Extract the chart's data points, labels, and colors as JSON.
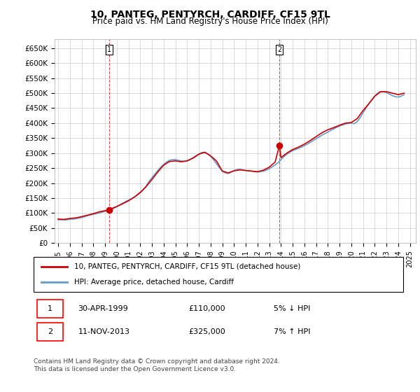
{
  "title": "10, PANTEG, PENTYRCH, CARDIFF, CF15 9TL",
  "subtitle": "Price paid vs. HM Land Registry's House Price Index (HPI)",
  "ylabel_ticks": [
    "£0",
    "£50K",
    "£100K",
    "£150K",
    "£200K",
    "£250K",
    "£300K",
    "£350K",
    "£400K",
    "£450K",
    "£500K",
    "£550K",
    "£600K",
    "£650K"
  ],
  "ytick_vals": [
    0,
    50000,
    100000,
    150000,
    200000,
    250000,
    300000,
    350000,
    400000,
    450000,
    500000,
    550000,
    600000,
    650000
  ],
  "ylim": [
    0,
    680000
  ],
  "xlim_start": 1995.0,
  "xlim_end": 2025.5,
  "sale1_year": 1999.33,
  "sale1_price": 110000,
  "sale1_label": "1",
  "sale2_year": 2013.87,
  "sale2_price": 325000,
  "sale2_label": "2",
  "property_line_color": "#cc0000",
  "hpi_line_color": "#6699cc",
  "vline_color": "#cc0000",
  "legend_label1": "10, PANTEG, PENTYRCH, CARDIFF, CF15 9TL (detached house)",
  "legend_label2": "HPI: Average price, detached house, Cardiff",
  "annotation1": "1    30-APR-1999         £110,000        5% ↓ HPI",
  "annotation2": "2    11-NOV-2013         £325,000        7% ↑ HPI",
  "footer": "Contains HM Land Registry data © Crown copyright and database right 2024.\nThis data is licensed under the Open Government Licence v3.0.",
  "background_color": "#ffffff",
  "grid_color": "#cccccc",
  "hpi_data": {
    "years": [
      1995.0,
      1995.25,
      1995.5,
      1995.75,
      1996.0,
      1996.25,
      1996.5,
      1996.75,
      1997.0,
      1997.25,
      1997.5,
      1997.75,
      1998.0,
      1998.25,
      1998.5,
      1998.75,
      1999.0,
      1999.25,
      1999.5,
      1999.75,
      2000.0,
      2000.25,
      2000.5,
      2000.75,
      2001.0,
      2001.25,
      2001.5,
      2001.75,
      2002.0,
      2002.25,
      2002.5,
      2002.75,
      2003.0,
      2003.25,
      2003.5,
      2003.75,
      2004.0,
      2004.25,
      2004.5,
      2004.75,
      2005.0,
      2005.25,
      2005.5,
      2005.75,
      2006.0,
      2006.25,
      2006.5,
      2006.75,
      2007.0,
      2007.25,
      2007.5,
      2007.75,
      2008.0,
      2008.25,
      2008.5,
      2008.75,
      2009.0,
      2009.25,
      2009.5,
      2009.75,
      2010.0,
      2010.25,
      2010.5,
      2010.75,
      2011.0,
      2011.25,
      2011.5,
      2011.75,
      2012.0,
      2012.25,
      2012.5,
      2012.75,
      2013.0,
      2013.25,
      2013.5,
      2013.75,
      2014.0,
      2014.25,
      2014.5,
      2014.75,
      2015.0,
      2015.25,
      2015.5,
      2015.75,
      2016.0,
      2016.25,
      2016.5,
      2016.75,
      2017.0,
      2017.25,
      2017.5,
      2017.75,
      2018.0,
      2018.25,
      2018.5,
      2018.75,
      2019.0,
      2019.25,
      2019.5,
      2019.75,
      2020.0,
      2020.25,
      2020.5,
      2020.75,
      2021.0,
      2021.25,
      2021.5,
      2021.75,
      2022.0,
      2022.25,
      2022.5,
      2022.75,
      2023.0,
      2023.25,
      2023.5,
      2023.75,
      2024.0,
      2024.25,
      2024.5
    ],
    "values": [
      78000,
      77500,
      77000,
      77500,
      79000,
      80000,
      81000,
      83000,
      85000,
      88000,
      91000,
      93500,
      96000,
      98000,
      100000,
      103000,
      106000,
      109000,
      112000,
      116000,
      121000,
      127000,
      133000,
      138000,
      143000,
      148000,
      154000,
      160000,
      167000,
      177000,
      190000,
      205000,
      218000,
      230000,
      242000,
      253000,
      262000,
      270000,
      276000,
      278000,
      278000,
      276000,
      274000,
      273000,
      275000,
      279000,
      285000,
      291000,
      297000,
      302000,
      302000,
      298000,
      290000,
      278000,
      265000,
      252000,
      240000,
      234000,
      232000,
      236000,
      242000,
      245000,
      246000,
      244000,
      242000,
      241000,
      240000,
      238000,
      237000,
      238000,
      240000,
      243000,
      248000,
      254000,
      260000,
      268000,
      278000,
      288000,
      296000,
      303000,
      308000,
      312000,
      316000,
      320000,
      325000,
      330000,
      336000,
      342000,
      348000,
      354000,
      360000,
      365000,
      370000,
      376000,
      381000,
      386000,
      390000,
      394000,
      397000,
      399000,
      400000,
      398000,
      405000,
      418000,
      434000,
      450000,
      465000,
      478000,
      490000,
      500000,
      505000,
      505000,
      502000,
      497000,
      492000,
      488000,
      487000,
      490000,
      495000
    ]
  },
  "property_data": {
    "years": [
      1995.0,
      1995.5,
      1996.0,
      1996.5,
      1997.0,
      1997.5,
      1998.0,
      1998.5,
      1999.0,
      1999.33,
      1999.5,
      2000.0,
      2000.5,
      2001.0,
      2001.5,
      2002.0,
      2002.5,
      2003.0,
      2003.5,
      2004.0,
      2004.5,
      2005.0,
      2005.5,
      2006.0,
      2006.5,
      2007.0,
      2007.5,
      2008.0,
      2008.5,
      2009.0,
      2009.5,
      2010.0,
      2010.5,
      2011.0,
      2011.5,
      2012.0,
      2012.5,
      2013.0,
      2013.5,
      2013.87,
      2014.0,
      2014.5,
      2015.0,
      2015.5,
      2016.0,
      2016.5,
      2017.0,
      2017.5,
      2018.0,
      2018.5,
      2019.0,
      2019.5,
      2020.0,
      2020.5,
      2021.0,
      2021.5,
      2022.0,
      2022.5,
      2023.0,
      2023.5,
      2024.0,
      2024.5
    ],
    "values": [
      80000,
      79000,
      82000,
      84000,
      88000,
      93000,
      98000,
      104000,
      108000,
      110000,
      114000,
      122000,
      131000,
      141000,
      153000,
      169000,
      188000,
      212000,
      237000,
      260000,
      272000,
      274000,
      271000,
      274000,
      283000,
      296000,
      303000,
      291000,
      274000,
      240000,
      234000,
      241000,
      244000,
      242000,
      240000,
      238000,
      243000,
      253000,
      270000,
      325000,
      285000,
      300000,
      312000,
      320000,
      330000,
      342000,
      355000,
      368000,
      378000,
      385000,
      393000,
      400000,
      402000,
      415000,
      442000,
      465000,
      490000,
      505000,
      505000,
      500000,
      495000,
      500000
    ]
  }
}
